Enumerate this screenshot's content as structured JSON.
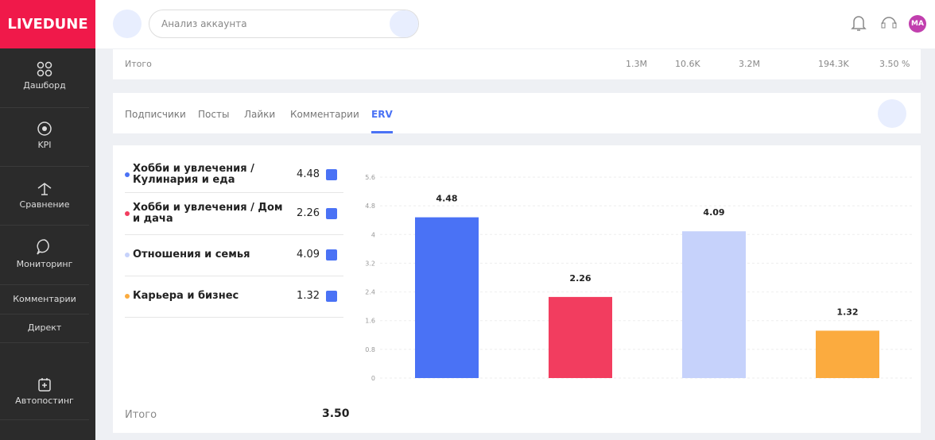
{
  "brand": "LIVEDUNE",
  "sidebar": {
    "items": [
      "Дашборд",
      "KPI",
      "Сравнение",
      "Мониторинг",
      "Комментарии",
      "Директ",
      "Автопостинг"
    ]
  },
  "header": {
    "search_placeholder": "Анализ аккаунта",
    "avatar": "MA"
  },
  "summary": {
    "label": "Итого",
    "cells": [
      "1.3M",
      "10.6K",
      "3.2M",
      "194.3K",
      "3.50 %"
    ]
  },
  "tabs": {
    "items": [
      "Подписчики",
      "Посты",
      "Лайки",
      "Комментарии",
      "ERV"
    ],
    "active": "ERV"
  },
  "total": {
    "label": "Итого",
    "value": "3.50"
  },
  "chart_data": {
    "type": "bar",
    "categories": [
      "Хобби и увлечения / Кулинария и еда",
      "Хобби и увлечения / Дом и дача",
      "Отношения и семья",
      "Карьера и бизнес"
    ],
    "values": [
      4.48,
      2.26,
      4.09,
      1.32
    ],
    "colors": [
      "#4a72f5",
      "#f23d5f",
      "#c6d2fb",
      "#fbab3f"
    ],
    "ylim": [
      0,
      5.6
    ],
    "yticks": [
      0,
      0.8,
      1.6,
      2.4,
      3.2,
      4,
      4.8,
      5.6
    ],
    "grid": true
  }
}
